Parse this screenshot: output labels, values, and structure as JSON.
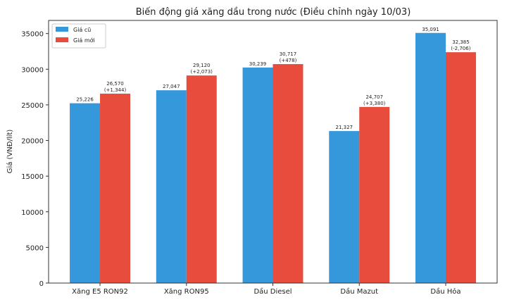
{
  "chart_data": {
    "type": "bar",
    "title": "Biến động giá xăng dầu trong nước (Điều chỉnh ngày 10/03)",
    "xlabel": "",
    "ylabel": "Giá (VNĐ/lít)",
    "ylim": [
      0,
      36845
    ],
    "yticks": [
      0,
      5000,
      10000,
      15000,
      20000,
      25000,
      30000,
      35000
    ],
    "categories": [
      "Xăng E5 RON92",
      "Xăng RON95",
      "Dầu Diesel",
      "Dầu Mazut",
      "Dầu Hỏa"
    ],
    "series": [
      {
        "name": "Giá cũ",
        "color": "#3498db",
        "values": [
          25226,
          27047,
          30239,
          21327,
          35091
        ],
        "labels": [
          "25,226",
          "27,047",
          "30,239",
          "21,327",
          "35,091"
        ]
      },
      {
        "name": "Giá mới",
        "color": "#e74c3c",
        "values": [
          26570,
          29120,
          30717,
          24707,
          32385
        ],
        "labels": [
          "26,570\n(+1,344)",
          "29,120\n(+2,073)",
          "30,717\n(+478)",
          "24,707\n(+3,380)",
          "32,385\n(-2,706)"
        ]
      }
    ],
    "grid": false,
    "legend": "top-left"
  }
}
